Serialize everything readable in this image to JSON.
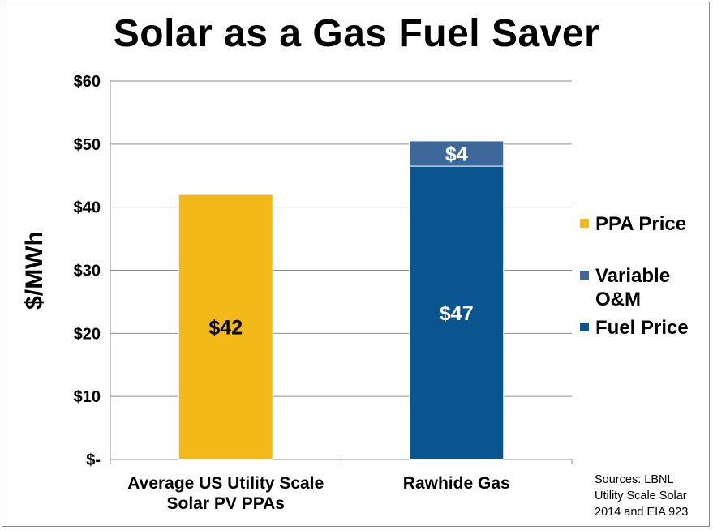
{
  "chart_data": {
    "type": "bar",
    "stacked": true,
    "title": "Solar as a Gas Fuel Saver",
    "ylabel": "$/MWh",
    "xlabel": "",
    "ylim": [
      0,
      60
    ],
    "yticks": [
      0,
      10,
      20,
      30,
      40,
      50,
      60
    ],
    "ytick_labels": [
      "$-",
      "$10",
      "$20",
      "$30",
      "$40",
      "$50",
      "$60"
    ],
    "categories": [
      [
        "Average US Utility Scale",
        "Solar PV PPAs"
      ],
      [
        "Rawhide Gas"
      ]
    ],
    "series": [
      {
        "name": "PPA Price",
        "color": "#f2b918",
        "values": [
          42,
          0
        ],
        "labels": [
          "$42",
          ""
        ]
      },
      {
        "name": "Fuel Price",
        "color": "#0a5490",
        "values": [
          0,
          46.5
        ],
        "labels": [
          "",
          "$47"
        ]
      },
      {
        "name": "Variable O&M",
        "color": "#3f689a",
        "values": [
          0,
          4
        ],
        "labels": [
          "",
          "$4"
        ]
      }
    ],
    "legend": {
      "position": "right",
      "entries": [
        {
          "lines": [
            "PPA Price"
          ],
          "color": "#f2b918"
        },
        {
          "lines": [
            "Variable",
            "O&M"
          ],
          "color": "#3f689a"
        },
        {
          "lines": [
            "Fuel Price"
          ],
          "color": "#0a5490"
        }
      ]
    },
    "grid": true
  },
  "sources_lines": [
    "Sources: LBNL",
    "Utility Scale Solar",
    "2014 and EIA 923"
  ]
}
